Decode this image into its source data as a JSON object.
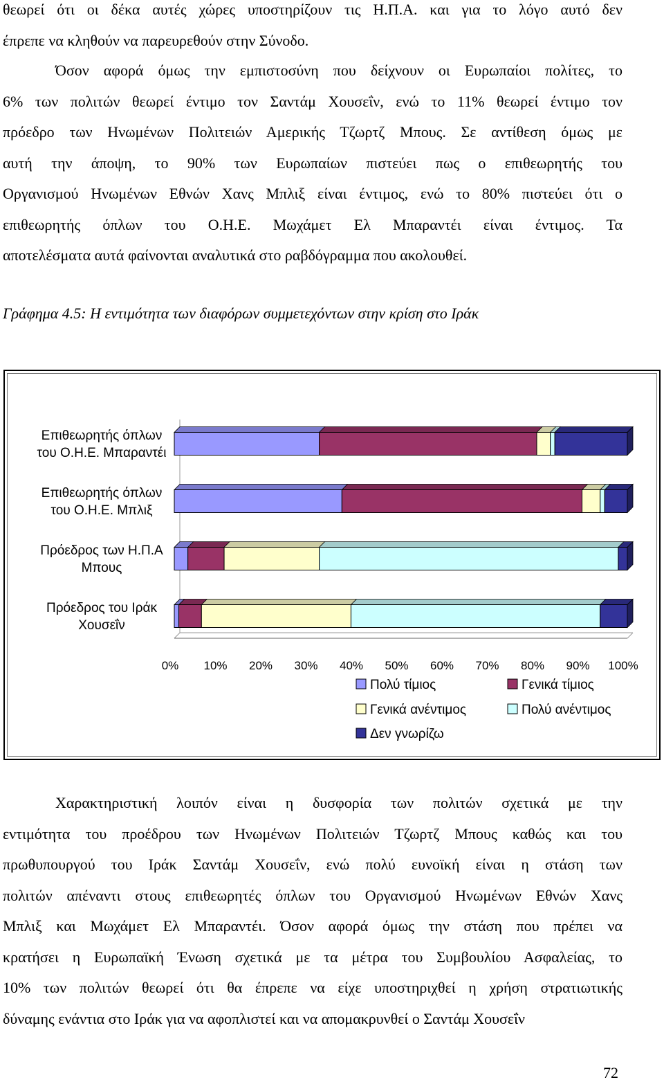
{
  "document": {
    "top_lines": [
      "θεωρεί ότι οι δέκα αυτές χώρες υποστηρίζουν τις Η.Π.Α. και για το λόγο  αυτό δεν",
      "έπρεπε να κληθούν να παρευρεθούν στην Σύνοδο."
    ],
    "paragraph_2_lines": [
      "Όσον αφορά όμως την εμπιστοσύνη που δείχνουν οι Ευρωπαίοι πολίτες, το",
      "6% των πολιτών θεωρεί έντιμο τον Σαντάμ Χουσεΐν, ενώ το 11% θεωρεί έντιμο τον",
      "πρόεδρο των Ηνωμένων Πολιτειών Αμερικής Τζωρτζ Μπους. Σε αντίθεση όμως με",
      "αυτή την άποψη, το 90% των Ευρωπαίων πιστεύει πως ο επιθεωρητής του",
      "Οργανισμού Ηνωμένων Εθνών Χανς Μπλιξ είναι έντιμος, ενώ το 80% πιστεύει ότι ο",
      "επιθεωρητής όπλων του Ο.Η.Ε. Μωχάμετ Ελ Μπαραντέι είναι έντιμος. Τα",
      "αποτελέσματα αυτά φαίνονται αναλυτικά στο ραβδόγραμμα που ακολουθεί."
    ],
    "caption": "Γράφημα 4.5: Η εντιμότητα των διαφόρων συμμετεχόντων στην κρίση στο Ιράκ",
    "bottom_lines": [
      "Χαρακτηριστική λοιπόν είναι η δυσφορία των πολιτών σχετικά με την",
      "εντιμότητα του προέδρου των Ηνωμένων Πολιτειών Τζωρτζ Μπους καθώς και του",
      "πρωθυπουργού του Ιράκ Σαντάμ Χουσεΐν, ενώ πολύ ευνοϊκή είναι η στάση των",
      "πολιτών απέναντι στους επιθεωρητές όπλων του Οργανισμού Ηνωμένων Εθνών Χανς",
      "Μπλιξ και Μωχάμετ Ελ Μπαραντέι. Όσον αφορά όμως την στάση που πρέπει να",
      "κρατήσει η Ευρωπαϊκή Ένωση σχετικά με τα μέτρα του Συμβουλίου Ασφαλείας, το",
      "10% των πολιτών θεωρεί ότι θα έπρεπε να είχε υποστηριχθεί η χρήση στρατιωτικής",
      "δύναμης ενάντια στο Ιράκ για να αφοπλιστεί και να απομακρυνθεί ο Σαντάμ Χουσεΐν"
    ],
    "page_number": "72"
  },
  "chart_data": {
    "type": "bar",
    "orientation": "horizontal",
    "stacked": "100%",
    "categories": [
      [
        "Επιθεωρητής όπλων",
        "του Ο.Η.Ε. Μπαραντέι"
      ],
      [
        "Επιθεωρητής όπλων",
        "του Ο.Η.Ε. Μπλιξ"
      ],
      [
        "Πρόεδρος των Η.Π.Α",
        "Μπους"
      ],
      [
        "Πρόεδρος του Ιράκ",
        "Χουσεΐν"
      ]
    ],
    "series": [
      {
        "name": "Πολύ τίμιος",
        "color": "#9999ff",
        "values": [
          32,
          37,
          3,
          1
        ]
      },
      {
        "name": "Γενικά τίμιος",
        "color": "#993366",
        "values": [
          48,
          53,
          8,
          5
        ]
      },
      {
        "name": "Γενικά ανέντιμος",
        "color": "#ffffcc",
        "values": [
          3,
          4,
          21,
          33
        ]
      },
      {
        "name": "Πολύ ανέντιμος",
        "color": "#ccffff",
        "values": [
          1,
          1,
          66,
          55
        ]
      },
      {
        "name": "Δεν γνωρίζω",
        "color": "#333399",
        "values": [
          16,
          5,
          2,
          6
        ]
      }
    ],
    "xlim": [
      0,
      100
    ],
    "x_ticks": [
      "0%",
      "10%",
      "20%",
      "30%",
      "40%",
      "50%",
      "60%",
      "70%",
      "80%",
      "90%",
      "100%"
    ],
    "legend": "bottom",
    "grid": false
  }
}
